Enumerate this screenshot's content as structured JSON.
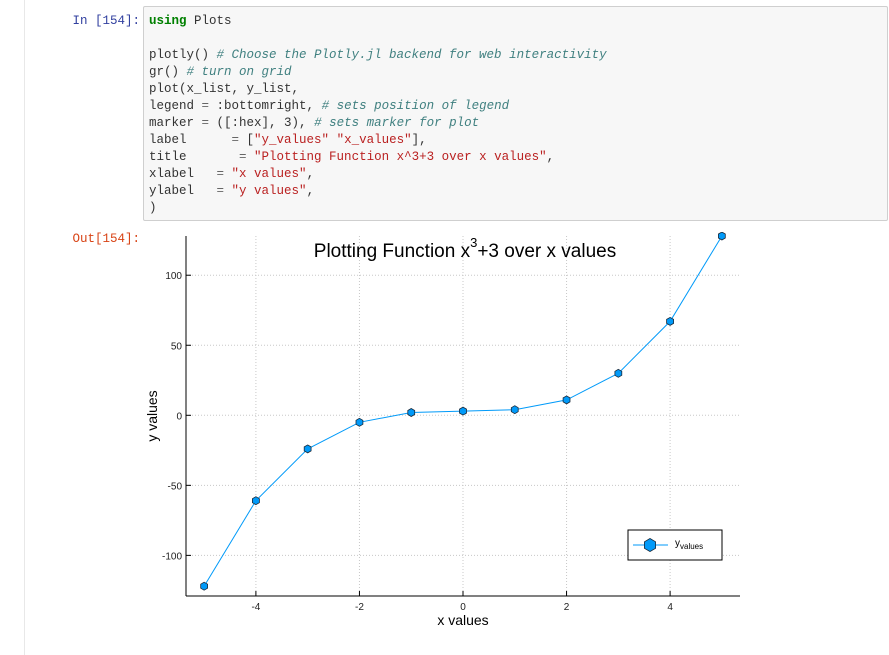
{
  "cell": {
    "in_prompt": "In [154]:",
    "out_prompt": "Out[154]:",
    "code_lines": [
      [
        {
          "t": "kw",
          "v": "using"
        },
        {
          "t": "tx",
          "v": " Plots"
        }
      ],
      [],
      [
        {
          "t": "tx",
          "v": "plotly() "
        },
        {
          "t": "cm",
          "v": "# Choose the Plotly.jl backend for web interactivity"
        }
      ],
      [
        {
          "t": "tx",
          "v": "gr() "
        },
        {
          "t": "cm",
          "v": "# turn on grid"
        }
      ],
      [
        {
          "t": "tx",
          "v": "plot(x_list, y_list,"
        }
      ],
      [
        {
          "t": "tx",
          "v": "legend "
        },
        {
          "t": "op",
          "v": "="
        },
        {
          "t": "tx",
          "v": " :bottomright, "
        },
        {
          "t": "cm",
          "v": "# sets position of legend"
        }
      ],
      [
        {
          "t": "tx",
          "v": "marker "
        },
        {
          "t": "op",
          "v": "="
        },
        {
          "t": "tx",
          "v": " ([:hex], 3), "
        },
        {
          "t": "cm",
          "v": "# sets marker for plot"
        }
      ],
      [
        {
          "t": "tx",
          "v": "label      "
        },
        {
          "t": "op",
          "v": "="
        },
        {
          "t": "tx",
          "v": " ["
        },
        {
          "t": "str",
          "v": "\"y_values\""
        },
        {
          "t": "tx",
          "v": " "
        },
        {
          "t": "str",
          "v": "\"x_values\""
        },
        {
          "t": "tx",
          "v": "],"
        }
      ],
      [
        {
          "t": "tx",
          "v": "title       "
        },
        {
          "t": "op",
          "v": "="
        },
        {
          "t": "tx",
          "v": " "
        },
        {
          "t": "str",
          "v": "\"Plotting Function x^3+3 over x values\""
        },
        {
          "t": "tx",
          "v": ","
        }
      ],
      [
        {
          "t": "tx",
          "v": "xlabel   "
        },
        {
          "t": "op",
          "v": "="
        },
        {
          "t": "tx",
          "v": " "
        },
        {
          "t": "str",
          "v": "\"x values\""
        },
        {
          "t": "tx",
          "v": ","
        }
      ],
      [
        {
          "t": "tx",
          "v": "ylabel   "
        },
        {
          "t": "op",
          "v": "="
        },
        {
          "t": "tx",
          "v": " "
        },
        {
          "t": "str",
          "v": "\"y values\""
        },
        {
          "t": "tx",
          "v": ","
        }
      ],
      [
        {
          "t": "tx",
          "v": ")"
        }
      ]
    ]
  },
  "chart_data": {
    "type": "line",
    "title_base": "Plotting Function x",
    "title_sup": "3",
    "title_rest": "+3 over x values",
    "xlabel": "x values",
    "ylabel": "y values",
    "x": [
      -5,
      -4,
      -3,
      -2,
      -1,
      0,
      1,
      2,
      3,
      4,
      5
    ],
    "series": [
      {
        "name": "y",
        "name_sub": "values",
        "values": [
          -122,
          -61,
          -24,
          -5,
          2,
          3,
          4,
          11,
          30,
          67,
          128
        ]
      }
    ],
    "xticks": [
      -4,
      -2,
      0,
      2,
      4
    ],
    "yticks": [
      -100,
      -50,
      0,
      50,
      100
    ],
    "xlim": [
      -5.35,
      5.35
    ],
    "ylim": [
      -129,
      128
    ],
    "grid": true,
    "legend_position": "bottom-right",
    "marker": "hexagon",
    "line_color": "#009af9",
    "marker_stroke": "#1c2a3a"
  }
}
